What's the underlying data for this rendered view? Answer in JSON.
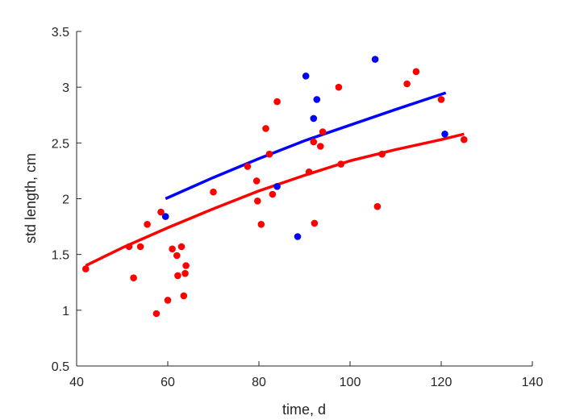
{
  "chart_data": {
    "type": "scatter",
    "xlabel": "time, d",
    "ylabel": "std length, cm",
    "xlim": [
      40,
      140
    ],
    "ylim": [
      0.5,
      3.5
    ],
    "xticks": [
      40,
      60,
      80,
      100,
      120,
      140
    ],
    "yticks": [
      0.5,
      1,
      1.5,
      2,
      2.5,
      3,
      3.5
    ],
    "xtick_labels": [
      "40",
      "60",
      "80",
      "100",
      "120",
      "140"
    ],
    "ytick_labels": [
      "0.5",
      "1",
      "1.5",
      "2",
      "2.5",
      "3",
      "3.5"
    ],
    "grid": false,
    "legend": "none",
    "series": [
      {
        "color": "#ff0000",
        "points": [
          [
            42,
            1.37
          ],
          [
            51.5,
            1.57
          ],
          [
            52.5,
            1.29
          ],
          [
            54,
            1.57
          ],
          [
            55.5,
            1.77
          ],
          [
            57.5,
            0.97
          ],
          [
            58.5,
            1.88
          ],
          [
            60,
            1.09
          ],
          [
            61,
            1.55
          ],
          [
            62,
            1.49
          ],
          [
            62.2,
            1.31
          ],
          [
            63,
            1.57
          ],
          [
            63.5,
            1.13
          ],
          [
            63.8,
            1.33
          ],
          [
            64,
            1.4
          ],
          [
            70,
            2.06
          ],
          [
            77.5,
            2.29
          ],
          [
            79.5,
            2.16
          ],
          [
            79.7,
            1.98
          ],
          [
            80.5,
            1.77
          ],
          [
            81.5,
            2.63
          ],
          [
            82.3,
            2.4
          ],
          [
            83,
            2.04
          ],
          [
            84,
            2.87
          ],
          [
            91,
            2.24
          ],
          [
            92,
            2.51
          ],
          [
            92.2,
            1.78
          ],
          [
            93.5,
            2.47
          ],
          [
            94,
            2.6
          ],
          [
            97.5,
            3.0
          ],
          [
            98,
            2.31
          ],
          [
            106,
            1.93
          ],
          [
            107,
            2.4
          ],
          [
            112.5,
            3.03
          ],
          [
            114.5,
            3.14
          ],
          [
            120,
            2.89
          ],
          [
            125,
            2.53
          ]
        ],
        "fit": [
          [
            42,
            1.4
          ],
          [
            50,
            1.56
          ],
          [
            60,
            1.74
          ],
          [
            70,
            1.91
          ],
          [
            80,
            2.07
          ],
          [
            90,
            2.21
          ],
          [
            100,
            2.34
          ],
          [
            110,
            2.44
          ],
          [
            120,
            2.53
          ],
          [
            125,
            2.58
          ]
        ]
      },
      {
        "color": "#0000ff",
        "points": [
          [
            59.5,
            1.84
          ],
          [
            84,
            2.11
          ],
          [
            88.5,
            1.66
          ],
          [
            90.3,
            3.1
          ],
          [
            92,
            2.72
          ],
          [
            92.7,
            2.89
          ],
          [
            105.5,
            3.25
          ],
          [
            120.8,
            2.58
          ]
        ],
        "fit": [
          [
            59.5,
            2.0
          ],
          [
            70,
            2.19
          ],
          [
            80,
            2.36
          ],
          [
            90,
            2.52
          ],
          [
            100,
            2.66
          ],
          [
            110,
            2.8
          ],
          [
            121,
            2.95
          ]
        ]
      }
    ]
  }
}
